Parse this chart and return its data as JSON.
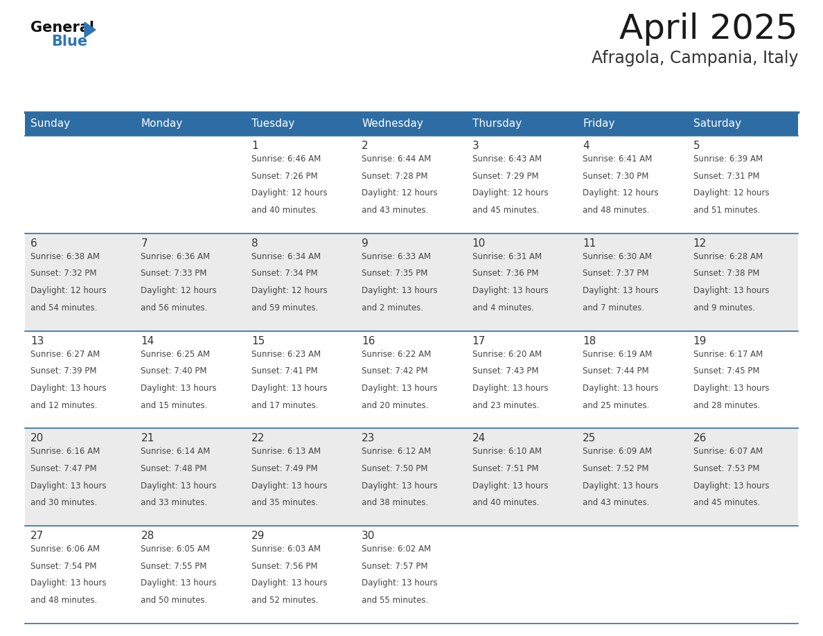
{
  "title": "April 2025",
  "subtitle": "Afragola, Campania, Italy",
  "header_bg": "#2E6DA4",
  "header_text_color": "#FFFFFF",
  "row_bg_even": "#EBEBEB",
  "row_bg_odd": "#FFFFFF",
  "cell_text_color": "#444444",
  "day_number_color": "#333333",
  "grid_line_color": "#2E6DA4",
  "days_of_week": [
    "Sunday",
    "Monday",
    "Tuesday",
    "Wednesday",
    "Thursday",
    "Friday",
    "Saturday"
  ],
  "calendar_data": [
    [
      {
        "day": "",
        "sunrise": "",
        "sunset": "",
        "daylight": ""
      },
      {
        "day": "",
        "sunrise": "",
        "sunset": "",
        "daylight": ""
      },
      {
        "day": "1",
        "sunrise": "6:46 AM",
        "sunset": "7:26 PM",
        "daylight1": "Daylight: 12 hours",
        "daylight2": "and 40 minutes."
      },
      {
        "day": "2",
        "sunrise": "6:44 AM",
        "sunset": "7:28 PM",
        "daylight1": "Daylight: 12 hours",
        "daylight2": "and 43 minutes."
      },
      {
        "day": "3",
        "sunrise": "6:43 AM",
        "sunset": "7:29 PM",
        "daylight1": "Daylight: 12 hours",
        "daylight2": "and 45 minutes."
      },
      {
        "day": "4",
        "sunrise": "6:41 AM",
        "sunset": "7:30 PM",
        "daylight1": "Daylight: 12 hours",
        "daylight2": "and 48 minutes."
      },
      {
        "day": "5",
        "sunrise": "6:39 AM",
        "sunset": "7:31 PM",
        "daylight1": "Daylight: 12 hours",
        "daylight2": "and 51 minutes."
      }
    ],
    [
      {
        "day": "6",
        "sunrise": "6:38 AM",
        "sunset": "7:32 PM",
        "daylight1": "Daylight: 12 hours",
        "daylight2": "and 54 minutes."
      },
      {
        "day": "7",
        "sunrise": "6:36 AM",
        "sunset": "7:33 PM",
        "daylight1": "Daylight: 12 hours",
        "daylight2": "and 56 minutes."
      },
      {
        "day": "8",
        "sunrise": "6:34 AM",
        "sunset": "7:34 PM",
        "daylight1": "Daylight: 12 hours",
        "daylight2": "and 59 minutes."
      },
      {
        "day": "9",
        "sunrise": "6:33 AM",
        "sunset": "7:35 PM",
        "daylight1": "Daylight: 13 hours",
        "daylight2": "and 2 minutes."
      },
      {
        "day": "10",
        "sunrise": "6:31 AM",
        "sunset": "7:36 PM",
        "daylight1": "Daylight: 13 hours",
        "daylight2": "and 4 minutes."
      },
      {
        "day": "11",
        "sunrise": "6:30 AM",
        "sunset": "7:37 PM",
        "daylight1": "Daylight: 13 hours",
        "daylight2": "and 7 minutes."
      },
      {
        "day": "12",
        "sunrise": "6:28 AM",
        "sunset": "7:38 PM",
        "daylight1": "Daylight: 13 hours",
        "daylight2": "and 9 minutes."
      }
    ],
    [
      {
        "day": "13",
        "sunrise": "6:27 AM",
        "sunset": "7:39 PM",
        "daylight1": "Daylight: 13 hours",
        "daylight2": "and 12 minutes."
      },
      {
        "day": "14",
        "sunrise": "6:25 AM",
        "sunset": "7:40 PM",
        "daylight1": "Daylight: 13 hours",
        "daylight2": "and 15 minutes."
      },
      {
        "day": "15",
        "sunrise": "6:23 AM",
        "sunset": "7:41 PM",
        "daylight1": "Daylight: 13 hours",
        "daylight2": "and 17 minutes."
      },
      {
        "day": "16",
        "sunrise": "6:22 AM",
        "sunset": "7:42 PM",
        "daylight1": "Daylight: 13 hours",
        "daylight2": "and 20 minutes."
      },
      {
        "day": "17",
        "sunrise": "6:20 AM",
        "sunset": "7:43 PM",
        "daylight1": "Daylight: 13 hours",
        "daylight2": "and 23 minutes."
      },
      {
        "day": "18",
        "sunrise": "6:19 AM",
        "sunset": "7:44 PM",
        "daylight1": "Daylight: 13 hours",
        "daylight2": "and 25 minutes."
      },
      {
        "day": "19",
        "sunrise": "6:17 AM",
        "sunset": "7:45 PM",
        "daylight1": "Daylight: 13 hours",
        "daylight2": "and 28 minutes."
      }
    ],
    [
      {
        "day": "20",
        "sunrise": "6:16 AM",
        "sunset": "7:47 PM",
        "daylight1": "Daylight: 13 hours",
        "daylight2": "and 30 minutes."
      },
      {
        "day": "21",
        "sunrise": "6:14 AM",
        "sunset": "7:48 PM",
        "daylight1": "Daylight: 13 hours",
        "daylight2": "and 33 minutes."
      },
      {
        "day": "22",
        "sunrise": "6:13 AM",
        "sunset": "7:49 PM",
        "daylight1": "Daylight: 13 hours",
        "daylight2": "and 35 minutes."
      },
      {
        "day": "23",
        "sunrise": "6:12 AM",
        "sunset": "7:50 PM",
        "daylight1": "Daylight: 13 hours",
        "daylight2": "and 38 minutes."
      },
      {
        "day": "24",
        "sunrise": "6:10 AM",
        "sunset": "7:51 PM",
        "daylight1": "Daylight: 13 hours",
        "daylight2": "and 40 minutes."
      },
      {
        "day": "25",
        "sunrise": "6:09 AM",
        "sunset": "7:52 PM",
        "daylight1": "Daylight: 13 hours",
        "daylight2": "and 43 minutes."
      },
      {
        "day": "26",
        "sunrise": "6:07 AM",
        "sunset": "7:53 PM",
        "daylight1": "Daylight: 13 hours",
        "daylight2": "and 45 minutes."
      }
    ],
    [
      {
        "day": "27",
        "sunrise": "6:06 AM",
        "sunset": "7:54 PM",
        "daylight1": "Daylight: 13 hours",
        "daylight2": "and 48 minutes."
      },
      {
        "day": "28",
        "sunrise": "6:05 AM",
        "sunset": "7:55 PM",
        "daylight1": "Daylight: 13 hours",
        "daylight2": "and 50 minutes."
      },
      {
        "day": "29",
        "sunrise": "6:03 AM",
        "sunset": "7:56 PM",
        "daylight1": "Daylight: 13 hours",
        "daylight2": "and 52 minutes."
      },
      {
        "day": "30",
        "sunrise": "6:02 AM",
        "sunset": "7:57 PM",
        "daylight1": "Daylight: 13 hours",
        "daylight2": "and 55 minutes."
      },
      {
        "day": "",
        "sunrise": "",
        "sunset": "",
        "daylight1": "",
        "daylight2": ""
      },
      {
        "day": "",
        "sunrise": "",
        "sunset": "",
        "daylight1": "",
        "daylight2": ""
      },
      {
        "day": "",
        "sunrise": "",
        "sunset": "",
        "daylight1": "",
        "daylight2": ""
      }
    ]
  ],
  "logo_text_general": "General",
  "logo_text_blue": "Blue",
  "logo_triangle_color": "#2E75B6",
  "title_fontsize": 36,
  "subtitle_fontsize": 17,
  "header_fontsize": 11,
  "day_num_fontsize": 11,
  "cell_fontsize": 8.5
}
